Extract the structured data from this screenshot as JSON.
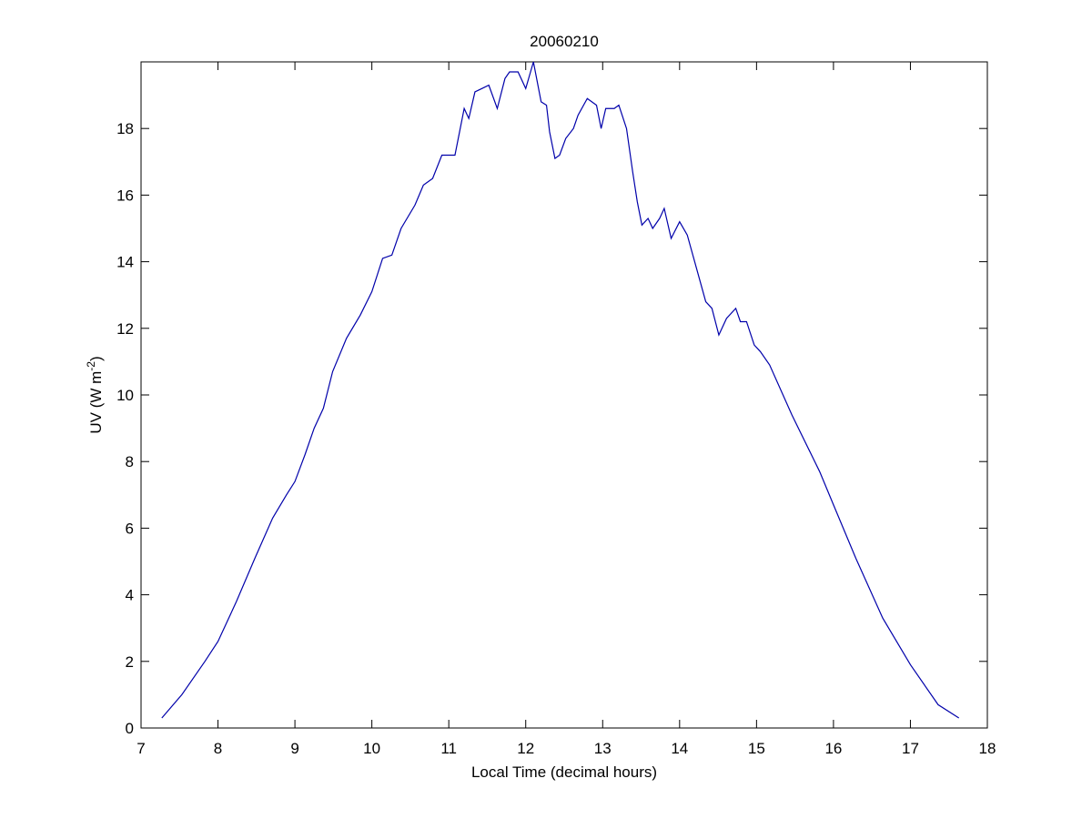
{
  "chart_data": {
    "type": "line",
    "title": "20060210",
    "x_label": "Local Time (decimal hours)",
    "y_label": {
      "text": "UV (W m",
      "superscript": "-2",
      "suffix": ")"
    },
    "x": [
      7.27,
      7.53,
      7.83,
      8.0,
      8.24,
      8.48,
      8.71,
      8.89,
      9.0,
      9.13,
      9.25,
      9.37,
      9.49,
      9.67,
      9.85,
      10.0,
      10.14,
      10.26,
      10.38,
      10.56,
      10.67,
      10.79,
      10.91,
      11.0,
      11.08,
      11.14,
      11.2,
      11.26,
      11.34,
      11.43,
      11.52,
      11.63,
      11.73,
      11.79,
      11.9,
      12.0,
      12.1,
      12.2,
      12.27,
      12.31,
      12.38,
      12.44,
      12.52,
      12.62,
      12.68,
      12.8,
      12.92,
      12.98,
      13.04,
      13.15,
      13.21,
      13.31,
      13.39,
      13.45,
      13.51,
      13.59,
      13.65,
      13.74,
      13.8,
      13.89,
      14.0,
      14.1,
      14.22,
      14.34,
      14.42,
      14.51,
      14.61,
      14.73,
      14.79,
      14.87,
      14.97,
      15.05,
      15.17,
      15.46,
      15.82,
      16.0,
      16.29,
      16.64,
      17.0,
      17.36,
      17.63
    ],
    "series": [
      {
        "color": "#0000aa",
        "values": [
          0.3,
          1.0,
          2.0,
          2.6,
          3.8,
          5.1,
          6.3,
          7.0,
          7.4,
          8.2,
          9.0,
          9.6,
          10.7,
          11.7,
          12.4,
          13.1,
          14.1,
          14.2,
          15.0,
          15.7,
          16.3,
          16.5,
          17.2,
          17.2,
          17.2,
          17.9,
          18.6,
          18.3,
          19.1,
          19.2,
          19.3,
          18.6,
          19.5,
          19.7,
          19.7,
          19.2,
          20.0,
          18.8,
          18.7,
          17.9,
          17.1,
          17.2,
          17.7,
          18.0,
          18.4,
          18.9,
          18.7,
          18.0,
          18.6,
          18.6,
          18.7,
          18.0,
          16.7,
          15.8,
          15.1,
          15.3,
          15.0,
          15.3,
          15.6,
          14.7,
          15.2,
          14.8,
          13.8,
          12.8,
          12.6,
          11.8,
          12.3,
          12.6,
          12.2,
          12.2,
          11.5,
          11.3,
          10.9,
          9.4,
          7.7,
          6.7,
          5.1,
          3.3,
          1.9,
          0.7,
          0.3
        ]
      }
    ],
    "xlim": [
      7,
      18
    ],
    "xticks": [
      7,
      8,
      9,
      10,
      11,
      12,
      13,
      14,
      15,
      16,
      17,
      18
    ],
    "ylim": [
      0,
      20
    ],
    "yticks": [
      0,
      2,
      4,
      6,
      8,
      10,
      12,
      14,
      16,
      18
    ]
  }
}
